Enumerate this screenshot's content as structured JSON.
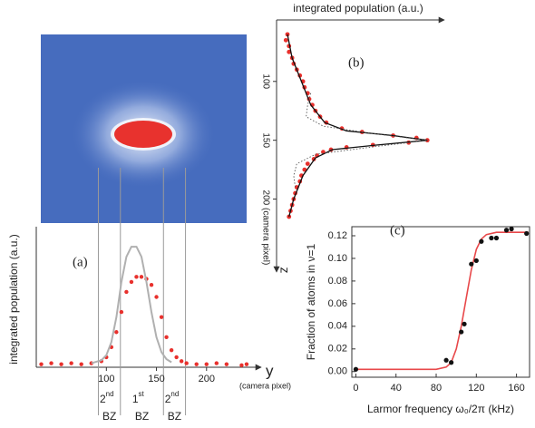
{
  "chart_data": [
    {
      "type": "profile",
      "panel": "(a)",
      "ylabel": "integrated population (a.u.)",
      "xlabel": "y",
      "xunit": "(camera pixel)",
      "xlim": [
        30,
        250
      ],
      "xticks": [
        100,
        150,
        200
      ],
      "ylim": [
        0,
        1.4
      ],
      "bz_edges": [
        92,
        114,
        157,
        179
      ],
      "bz_labels": [
        {
          "ordinal": "2",
          "suffix": "nd",
          "zone": "BZ"
        },
        {
          "ordinal": "1",
          "suffix": "st",
          "zone": "BZ"
        },
        {
          "ordinal": "2",
          "suffix": "nd",
          "zone": "BZ"
        }
      ],
      "series": [
        {
          "color": "#e8302c",
          "style": "points",
          "x": [
            35,
            45,
            55,
            65,
            75,
            85,
            95,
            100,
            105,
            110,
            115,
            120,
            125,
            130,
            135,
            140,
            145,
            150,
            155,
            160,
            165,
            170,
            175,
            180,
            190,
            200,
            210,
            220,
            235,
            240
          ],
          "values": [
            0.03,
            0.04,
            0.03,
            0.04,
            0.03,
            0.04,
            0.06,
            0.1,
            0.2,
            0.35,
            0.55,
            0.75,
            0.85,
            0.9,
            0.9,
            0.88,
            0.82,
            0.7,
            0.5,
            0.3,
            0.17,
            0.1,
            0.06,
            0.04,
            0.03,
            0.03,
            0.04,
            0.03,
            0.02,
            0.03
          ]
        },
        {
          "color": "#b0b0b0",
          "style": "line",
          "x": [
            85,
            95,
            100,
            105,
            110,
            115,
            120,
            125,
            130,
            135,
            140,
            145,
            150,
            155,
            160,
            165
          ],
          "values": [
            0.04,
            0.07,
            0.12,
            0.25,
            0.5,
            0.85,
            1.1,
            1.2,
            1.2,
            1.1,
            0.85,
            0.55,
            0.3,
            0.15,
            0.08,
            0.05
          ]
        }
      ]
    },
    {
      "type": "rotated",
      "panel": "(b)",
      "xlabel": "integrated population (a.u.)",
      "ylabel": "z",
      "xlim": [
        0,
        1.05
      ],
      "ylim": [
        47,
        262
      ],
      "yticks": [
        100,
        150,
        {
          "value": 200,
          "label": "200 (camera pixel)"
        }
      ],
      "series": [
        {
          "color": "#e8302c",
          "style": "points",
          "z": [
            60,
            65,
            70,
            75,
            80,
            85,
            90,
            95,
            100,
            105,
            110,
            115,
            120,
            125,
            130,
            135,
            140,
            143,
            146,
            148,
            150,
            152,
            154,
            156,
            158,
            160,
            163,
            166,
            170,
            175,
            180,
            185,
            190,
            195,
            200,
            205,
            210,
            215
          ],
          "values": [
            0.07,
            0.06,
            0.08,
            0.08,
            0.1,
            0.11,
            0.13,
            0.15,
            0.17,
            0.18,
            0.2,
            0.21,
            0.23,
            0.25,
            0.28,
            0.32,
            0.42,
            0.55,
            0.75,
            0.9,
            0.97,
            0.85,
            0.62,
            0.45,
            0.35,
            0.3,
            0.26,
            0.24,
            0.2,
            0.18,
            0.16,
            0.15,
            0.13,
            0.12,
            0.11,
            0.1,
            0.09,
            0.08
          ]
        },
        {
          "color": "#111111",
          "style": "line",
          "z": [
            60,
            80,
            100,
            120,
            135,
            142,
            146,
            150,
            154,
            158,
            165,
            180,
            200,
            215
          ],
          "values": [
            0.07,
            0.1,
            0.16,
            0.22,
            0.31,
            0.45,
            0.75,
            0.97,
            0.65,
            0.36,
            0.25,
            0.17,
            0.11,
            0.08
          ]
        },
        {
          "color": "#555555",
          "style": "dotted",
          "z": [
            110,
            120,
            130,
            138,
            144,
            150,
            156,
            162,
            170,
            180,
            190
          ],
          "values": [
            0.22,
            0.2,
            0.19,
            0.3,
            0.6,
            0.97,
            0.6,
            0.25,
            0.13,
            0.11,
            0.12
          ]
        }
      ]
    },
    {
      "type": "scatter",
      "panel": "(c)",
      "xlabel": "Larmor frequency ω₀/2π (kHz)",
      "ylabel": "Fraction of atoms in ν=1",
      "xlim": [
        -4,
        173
      ],
      "xticks": [
        0,
        40,
        80,
        120,
        160
      ],
      "ylim": [
        -0.005,
        0.128
      ],
      "yticks": [
        {
          "value": 0,
          "label": "0.00"
        },
        {
          "value": 0.02,
          "label": "0.02"
        },
        {
          "value": 0.04,
          "label": "0.04"
        },
        {
          "value": 0.06,
          "label": "0.06"
        },
        {
          "value": 0.08,
          "label": "0.08"
        },
        {
          "value": 0.1,
          "label": "0.10"
        },
        {
          "value": 0.12,
          "label": "0.12"
        }
      ],
      "series": [
        {
          "color": "#111111",
          "style": "points",
          "x": [
            0,
            90,
            95,
            105,
            108,
            115,
            120,
            125,
            135,
            140,
            150,
            155,
            170
          ],
          "values": [
            0.002,
            0.01,
            0.008,
            0.035,
            0.042,
            0.095,
            0.098,
            0.115,
            0.118,
            0.118,
            0.125,
            0.126,
            0.122
          ]
        },
        {
          "color": "#e8484a",
          "style": "line",
          "x": [
            0,
            80,
            90,
            95,
            100,
            105,
            110,
            115,
            120,
            125,
            130,
            140,
            150,
            160,
            172
          ],
          "values": [
            0.002,
            0.002,
            0.004,
            0.008,
            0.02,
            0.04,
            0.065,
            0.09,
            0.108,
            0.117,
            0.121,
            0.123,
            0.123,
            0.123,
            0.123
          ]
        }
      ]
    }
  ]
}
